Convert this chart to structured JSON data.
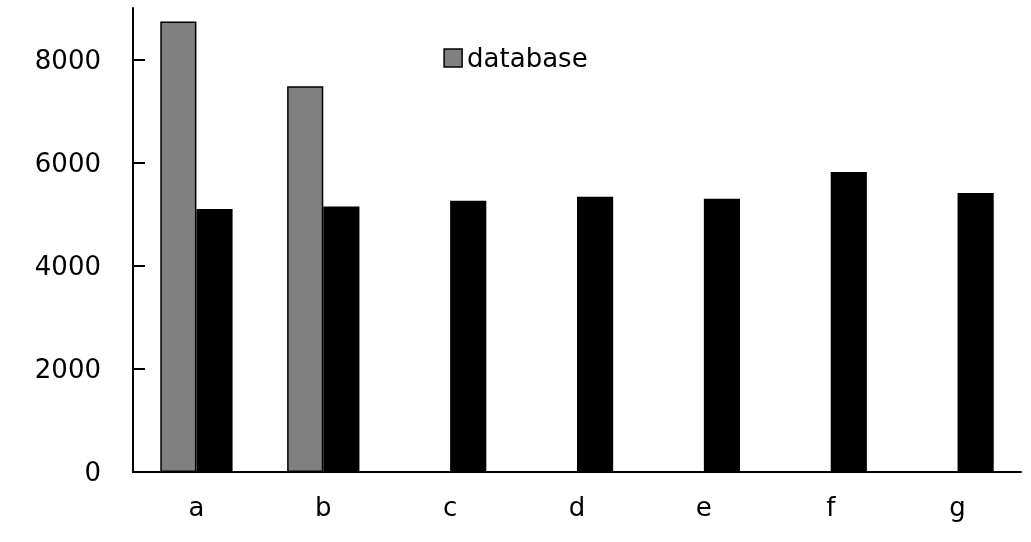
{
  "chart_data": {
    "type": "bar",
    "categories": [
      "a",
      "b",
      "c",
      "d",
      "e",
      "f",
      "g"
    ],
    "series": [
      {
        "name": "database",
        "color": "#808080",
        "values": [
          8740,
          7480,
          null,
          null,
          null,
          null,
          null
        ]
      },
      {
        "color": "#000000",
        "values": [
          5100,
          5150,
          5260,
          5340,
          5300,
          5820,
          5410
        ]
      }
    ],
    "ylim": [
      0,
      9000
    ],
    "yticks": [
      0,
      2000,
      4000,
      6000,
      8000
    ],
    "grid": false,
    "legend": "top"
  }
}
